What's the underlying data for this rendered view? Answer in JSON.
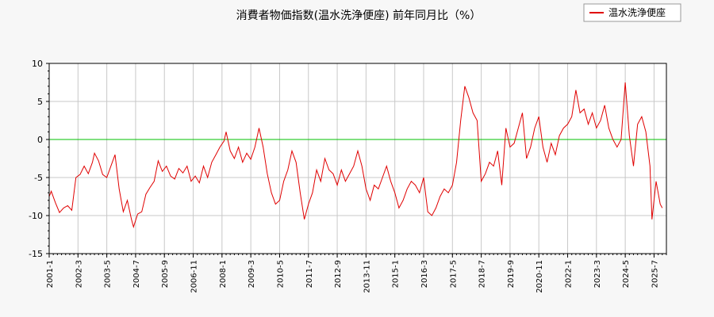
{
  "chart_data": {
    "type": "line",
    "title": "消費者物価指数(温水洗浄便座) 前年同月比（%）",
    "legend": {
      "position": "top-right",
      "label": "温水洗浄便座"
    },
    "ylim": [
      -15,
      10
    ],
    "yticks": [
      10,
      5,
      0,
      -5,
      -10,
      -15
    ],
    "xticks": [
      "2001-1",
      "2002-3",
      "2003-5",
      "2004-7",
      "2005-9",
      "2006-11",
      "2008-1",
      "2009-3",
      "2010-5",
      "2011-7",
      "2012-9",
      "2013-11",
      "2015-1",
      "2016-3",
      "2017-5",
      "2018-7",
      "2019-9",
      "2020-11",
      "2022-1",
      "2023-3",
      "2024-5",
      "2025-7"
    ],
    "x_start": "2001-1",
    "x_end": "2026-1",
    "grid": true,
    "zero_line": true,
    "colors": {
      "series": "#e00000",
      "zero": "#00c000",
      "grid": "#c8c8c8",
      "background": "#ffffff"
    },
    "series": [
      {
        "name": "温水洗浄便座",
        "points": [
          [
            "2001-1",
            -7.5
          ],
          [
            "2001-2",
            -6.8
          ],
          [
            "2001-4",
            -8.3
          ],
          [
            "2001-6",
            -9.6
          ],
          [
            "2001-8",
            -9.0
          ],
          [
            "2001-10",
            -8.7
          ],
          [
            "2001-12",
            -9.3
          ],
          [
            "2002-2",
            -5.0
          ],
          [
            "2002-4",
            -4.6
          ],
          [
            "2002-6",
            -3.5
          ],
          [
            "2002-8",
            -4.5
          ],
          [
            "2002-10",
            -3.0
          ],
          [
            "2002-11",
            -1.8
          ],
          [
            "2003-1",
            -2.8
          ],
          [
            "2003-3",
            -4.6
          ],
          [
            "2003-5",
            -5.0
          ],
          [
            "2003-7",
            -3.5
          ],
          [
            "2003-9",
            -2.0
          ],
          [
            "2003-11",
            -6.5
          ],
          [
            "2004-1",
            -9.5
          ],
          [
            "2004-3",
            -8.0
          ],
          [
            "2004-5",
            -10.5
          ],
          [
            "2004-6",
            -11.5
          ],
          [
            "2004-8",
            -9.8
          ],
          [
            "2004-10",
            -9.5
          ],
          [
            "2004-12",
            -7.2
          ],
          [
            "2005-2",
            -6.3
          ],
          [
            "2005-4",
            -5.5
          ],
          [
            "2005-6",
            -2.8
          ],
          [
            "2005-8",
            -4.2
          ],
          [
            "2005-10",
            -3.5
          ],
          [
            "2005-12",
            -4.8
          ],
          [
            "2006-2",
            -5.2
          ],
          [
            "2006-4",
            -3.8
          ],
          [
            "2006-6",
            -4.4
          ],
          [
            "2006-8",
            -3.5
          ],
          [
            "2006-10",
            -5.5
          ],
          [
            "2006-12",
            -4.8
          ],
          [
            "2007-2",
            -5.7
          ],
          [
            "2007-4",
            -3.5
          ],
          [
            "2007-6",
            -5.0
          ],
          [
            "2007-8",
            -3.0
          ],
          [
            "2007-10",
            -2.0
          ],
          [
            "2007-12",
            -1.0
          ],
          [
            "2008-2",
            -0.2
          ],
          [
            "2008-3",
            1.0
          ],
          [
            "2008-5",
            -1.5
          ],
          [
            "2008-7",
            -2.5
          ],
          [
            "2008-9",
            -1.0
          ],
          [
            "2008-11",
            -3.0
          ],
          [
            "2009-1",
            -1.8
          ],
          [
            "2009-3",
            -2.6
          ],
          [
            "2009-5",
            -1.0
          ],
          [
            "2009-7",
            1.5
          ],
          [
            "2009-9",
            -1.0
          ],
          [
            "2009-11",
            -4.5
          ],
          [
            "2010-1",
            -7.0
          ],
          [
            "2010-3",
            -8.5
          ],
          [
            "2010-5",
            -8.0
          ],
          [
            "2010-7",
            -5.5
          ],
          [
            "2010-9",
            -4.0
          ],
          [
            "2010-11",
            -1.5
          ],
          [
            "2011-1",
            -3.0
          ],
          [
            "2011-3",
            -7.0
          ],
          [
            "2011-5",
            -10.5
          ],
          [
            "2011-7",
            -8.5
          ],
          [
            "2011-9",
            -7.0
          ],
          [
            "2011-11",
            -4.0
          ],
          [
            "2012-1",
            -5.5
          ],
          [
            "2012-3",
            -2.5
          ],
          [
            "2012-5",
            -4.0
          ],
          [
            "2012-7",
            -4.5
          ],
          [
            "2012-9",
            -6.0
          ],
          [
            "2012-11",
            -4.0
          ],
          [
            "2013-1",
            -5.5
          ],
          [
            "2013-3",
            -4.5
          ],
          [
            "2013-5",
            -3.5
          ],
          [
            "2013-7",
            -1.5
          ],
          [
            "2013-9",
            -3.5
          ],
          [
            "2013-11",
            -6.5
          ],
          [
            "2014-1",
            -8.0
          ],
          [
            "2014-3",
            -6.0
          ],
          [
            "2014-5",
            -6.5
          ],
          [
            "2014-7",
            -5.0
          ],
          [
            "2014-9",
            -3.5
          ],
          [
            "2014-11",
            -5.5
          ],
          [
            "2015-1",
            -7.0
          ],
          [
            "2015-3",
            -9.0
          ],
          [
            "2015-5",
            -8.0
          ],
          [
            "2015-7",
            -6.5
          ],
          [
            "2015-9",
            -5.5
          ],
          [
            "2015-11",
            -6.0
          ],
          [
            "2016-1",
            -7.0
          ],
          [
            "2016-3",
            -5.0
          ],
          [
            "2016-5",
            -9.5
          ],
          [
            "2016-7",
            -10.0
          ],
          [
            "2016-9",
            -9.0
          ],
          [
            "2016-11",
            -7.5
          ],
          [
            "2017-1",
            -6.5
          ],
          [
            "2017-3",
            -7.0
          ],
          [
            "2017-5",
            -6.0
          ],
          [
            "2017-7",
            -3.0
          ],
          [
            "2017-9",
            2.5
          ],
          [
            "2017-11",
            7.0
          ],
          [
            "2018-1",
            5.5
          ],
          [
            "2018-3",
            3.5
          ],
          [
            "2018-5",
            2.5
          ],
          [
            "2018-7",
            -5.5
          ],
          [
            "2018-9",
            -4.5
          ],
          [
            "2018-11",
            -3.0
          ],
          [
            "2019-1",
            -3.5
          ],
          [
            "2019-3",
            -1.5
          ],
          [
            "2019-5",
            -6.0
          ],
          [
            "2019-7",
            1.5
          ],
          [
            "2019-9",
            -1.0
          ],
          [
            "2019-11",
            -0.5
          ],
          [
            "2020-1",
            1.5
          ],
          [
            "2020-3",
            3.5
          ],
          [
            "2020-5",
            -2.5
          ],
          [
            "2020-7",
            -1.0
          ],
          [
            "2020-9",
            1.5
          ],
          [
            "2020-11",
            3.0
          ],
          [
            "2021-1",
            -1.0
          ],
          [
            "2021-3",
            -3.0
          ],
          [
            "2021-5",
            -0.5
          ],
          [
            "2021-7",
            -2.0
          ],
          [
            "2021-9",
            0.5
          ],
          [
            "2021-11",
            1.5
          ],
          [
            "2022-1",
            2.0
          ],
          [
            "2022-3",
            3.0
          ],
          [
            "2022-5",
            6.5
          ],
          [
            "2022-7",
            3.5
          ],
          [
            "2022-9",
            4.0
          ],
          [
            "2022-11",
            2.0
          ],
          [
            "2023-1",
            3.5
          ],
          [
            "2023-3",
            1.5
          ],
          [
            "2023-5",
            2.5
          ],
          [
            "2023-7",
            4.5
          ],
          [
            "2023-9",
            1.5
          ],
          [
            "2023-11",
            0.0
          ],
          [
            "2024-1",
            -1.0
          ],
          [
            "2024-3",
            0.0
          ],
          [
            "2024-5",
            7.5
          ],
          [
            "2024-7",
            0.5
          ],
          [
            "2024-9",
            -3.5
          ],
          [
            "2024-11",
            2.0
          ],
          [
            "2025-1",
            3.0
          ],
          [
            "2025-3",
            1.0
          ],
          [
            "2025-5",
            -3.5
          ],
          [
            "2025-6",
            -10.5
          ],
          [
            "2025-8",
            -5.5
          ],
          [
            "2025-10",
            -8.5
          ],
          [
            "2025-11",
            -9.0
          ]
        ]
      }
    ]
  }
}
